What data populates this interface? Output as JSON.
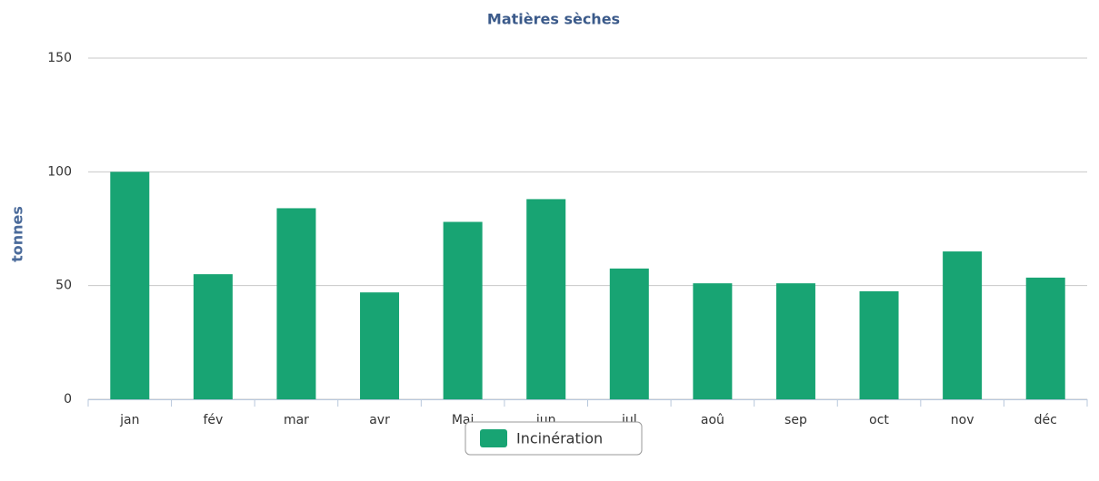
{
  "chart_data": {
    "type": "bar",
    "title": "Matières sèches",
    "y_label": "tonnes",
    "categories": [
      "jan",
      "fév",
      "mar",
      "avr",
      "Mai",
      "jun",
      "jul",
      "aoû",
      "sep",
      "oct",
      "nov",
      "déc"
    ],
    "series": [
      {
        "name": "Incinération",
        "color": "#18a473",
        "values": [
          100,
          55,
          84,
          47,
          78,
          88,
          57.5,
          51,
          51,
          47.5,
          65,
          53.5
        ]
      }
    ],
    "ylim": [
      0,
      150
    ],
    "yticks": [
      0,
      50,
      100,
      150
    ],
    "grid": true,
    "legend": "bottom"
  }
}
